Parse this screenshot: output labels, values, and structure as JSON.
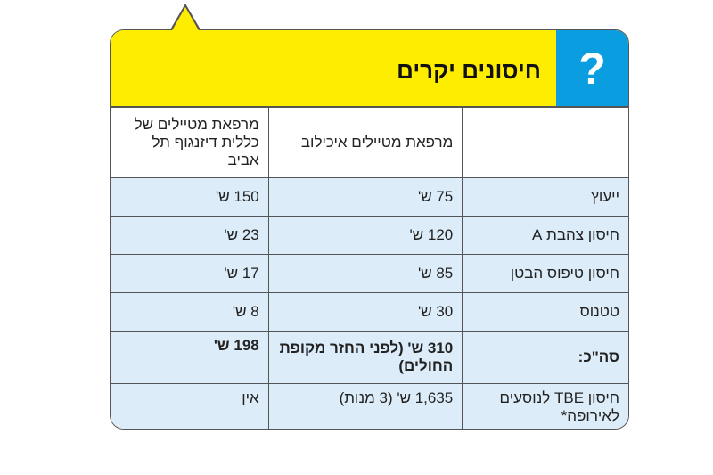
{
  "header": {
    "icon": "question-mark",
    "icon_text": "?",
    "title": "חיסונים יקרים",
    "colors": {
      "yellow": "#ffed00",
      "blue": "#0a9ee0",
      "row": "#dcecf8"
    }
  },
  "columns": [
    "",
    "מרפאת מטיילים איכילוב",
    "מרפאת מטיילים של כללית דיזנגוף תל אביב"
  ],
  "rows": [
    {
      "label": "ייעוץ",
      "ichilov": "75 ש'",
      "clalit": "150 ש'"
    },
    {
      "label": "חיסון צהבת A",
      "ichilov": "120 ש'",
      "clalit": "23 ש'"
    },
    {
      "label": "חיסון טיפוס הבטן",
      "ichilov": "85 ש'",
      "clalit": "17 ש'"
    },
    {
      "label": "טטנוס",
      "ichilov": "30 ש'",
      "clalit": "8 ש'"
    }
  ],
  "total": {
    "label": "סה\"כ:",
    "ichilov": "310 ש' (לפני החזר מקופת החולים)",
    "clalit": "198 ש'"
  },
  "tbe": {
    "label": "חיסון TBE לנוסעים לאירופה*",
    "ichilov": "1,635 ש' (3 מנות)",
    "clalit": "אין"
  }
}
